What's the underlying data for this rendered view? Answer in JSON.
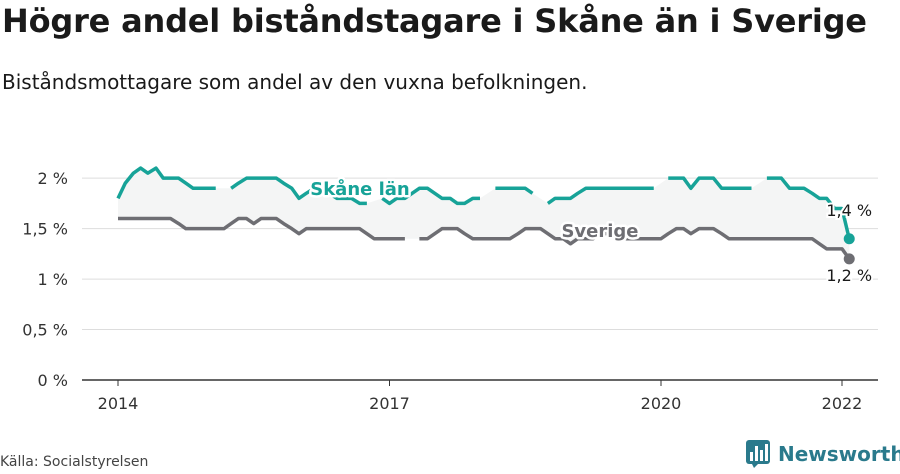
{
  "title": "Högre andel biståndstagare i Skåne än i Sverige",
  "subtitle": "Biståndsmottagare som andel av den vuxna befolkningen.",
  "source": "Källa: Socialstyrelsen",
  "brand": {
    "name": "Newsworthy",
    "icon": "bar-chart-logo-icon",
    "color": "#2a7a8c"
  },
  "chart_data": {
    "type": "line",
    "title": "Högre andel biståndstagare i Skåne än i Sverige",
    "subtitle": "Biståndsmottagare som andel av den vuxna befolkningen.",
    "xlabel": "",
    "ylabel": "",
    "xlim": [
      2014,
      2022.3
    ],
    "ylim": [
      0,
      2.2
    ],
    "y_ticks": [
      0,
      0.5,
      1,
      1.5,
      2
    ],
    "y_tick_labels": [
      "0 %",
      "0,5 %",
      "1 %",
      "1,5 %",
      "2 %"
    ],
    "x_ticks": [
      2014,
      2017,
      2020,
      2022
    ],
    "x_tick_labels": [
      "2014",
      "2017",
      "2020",
      "2022"
    ],
    "grid": true,
    "legend": "inline labels",
    "series": [
      {
        "name": "Skåne län",
        "color": "#17a398",
        "end_label": "1,4 %",
        "points": [
          [
            2014.0,
            1.8
          ],
          [
            2014.08,
            1.95
          ],
          [
            2014.17,
            2.05
          ],
          [
            2014.25,
            2.1
          ],
          [
            2014.33,
            2.05
          ],
          [
            2014.42,
            2.1
          ],
          [
            2014.5,
            2.0
          ],
          [
            2014.58,
            2.0
          ],
          [
            2014.67,
            2.0
          ],
          [
            2014.75,
            1.95
          ],
          [
            2014.83,
            1.9
          ],
          [
            2014.92,
            1.9
          ],
          [
            2015.0,
            1.9
          ],
          [
            2015.08,
            1.9
          ],
          [
            2015.17,
            null
          ],
          [
            2015.25,
            1.9
          ],
          [
            2015.33,
            1.95
          ],
          [
            2015.42,
            2.0
          ],
          [
            2015.5,
            2.0
          ],
          [
            2015.58,
            2.0
          ],
          [
            2015.67,
            2.0
          ],
          [
            2015.75,
            2.0
          ],
          [
            2015.83,
            1.95
          ],
          [
            2015.92,
            1.9
          ],
          [
            2016.0,
            1.8
          ],
          [
            2016.08,
            1.85
          ],
          [
            2016.17,
            1.9
          ],
          [
            2016.25,
            1.9
          ],
          [
            2016.33,
            1.85
          ],
          [
            2016.42,
            1.8
          ],
          [
            2016.5,
            1.8
          ],
          [
            2016.58,
            1.8
          ],
          [
            2016.67,
            1.75
          ],
          [
            2016.75,
            1.75
          ],
          [
            2016.83,
            null
          ],
          [
            2016.92,
            1.8
          ],
          [
            2017.0,
            1.75
          ],
          [
            2017.08,
            1.8
          ],
          [
            2017.17,
            1.8
          ],
          [
            2017.25,
            1.85
          ],
          [
            2017.33,
            1.9
          ],
          [
            2017.42,
            1.9
          ],
          [
            2017.5,
            1.85
          ],
          [
            2017.58,
            1.8
          ],
          [
            2017.67,
            1.8
          ],
          [
            2017.75,
            1.75
          ],
          [
            2017.83,
            1.75
          ],
          [
            2017.92,
            1.8
          ],
          [
            2018.0,
            1.8
          ],
          [
            2018.08,
            null
          ],
          [
            2018.17,
            1.9
          ],
          [
            2018.25,
            1.9
          ],
          [
            2018.33,
            1.9
          ],
          [
            2018.42,
            1.9
          ],
          [
            2018.5,
            1.9
          ],
          [
            2018.58,
            1.85
          ],
          [
            2018.67,
            null
          ],
          [
            2018.75,
            1.75
          ],
          [
            2018.83,
            1.8
          ],
          [
            2018.92,
            1.8
          ],
          [
            2019.0,
            1.8
          ],
          [
            2019.08,
            1.85
          ],
          [
            2019.17,
            1.9
          ],
          [
            2019.25,
            1.9
          ],
          [
            2019.33,
            1.9
          ],
          [
            2019.42,
            1.9
          ],
          [
            2019.5,
            1.9
          ],
          [
            2019.58,
            1.9
          ],
          [
            2019.67,
            1.9
          ],
          [
            2019.75,
            1.9
          ],
          [
            2019.83,
            1.9
          ],
          [
            2019.92,
            1.9
          ],
          [
            2020.0,
            null
          ],
          [
            2020.08,
            2.0
          ],
          [
            2020.17,
            2.0
          ],
          [
            2020.25,
            2.0
          ],
          [
            2020.33,
            1.9
          ],
          [
            2020.42,
            2.0
          ],
          [
            2020.5,
            2.0
          ],
          [
            2020.58,
            2.0
          ],
          [
            2020.67,
            1.9
          ],
          [
            2020.75,
            1.9
          ],
          [
            2020.83,
            1.9
          ],
          [
            2020.92,
            1.9
          ],
          [
            2021.0,
            1.9
          ],
          [
            2021.08,
            null
          ],
          [
            2021.17,
            2.0
          ],
          [
            2021.25,
            2.0
          ],
          [
            2021.33,
            2.0
          ],
          [
            2021.42,
            1.9
          ],
          [
            2021.5,
            1.9
          ],
          [
            2021.58,
            1.9
          ],
          [
            2021.67,
            1.85
          ],
          [
            2021.75,
            1.8
          ],
          [
            2021.83,
            1.8
          ],
          [
            2021.92,
            1.7
          ],
          [
            2022.0,
            1.7
          ],
          [
            2022.08,
            1.4
          ]
        ]
      },
      {
        "name": "Sverige",
        "color": "#6e6e73",
        "end_label": "1,2 %",
        "points": [
          [
            2014.0,
            1.6
          ],
          [
            2014.08,
            1.6
          ],
          [
            2014.17,
            1.6
          ],
          [
            2014.25,
            1.6
          ],
          [
            2014.33,
            1.6
          ],
          [
            2014.42,
            1.6
          ],
          [
            2014.5,
            1.6
          ],
          [
            2014.58,
            1.6
          ],
          [
            2014.67,
            1.55
          ],
          [
            2014.75,
            1.5
          ],
          [
            2014.83,
            1.5
          ],
          [
            2014.92,
            1.5
          ],
          [
            2015.0,
            1.5
          ],
          [
            2015.08,
            1.5
          ],
          [
            2015.17,
            1.5
          ],
          [
            2015.25,
            1.55
          ],
          [
            2015.33,
            1.6
          ],
          [
            2015.42,
            1.6
          ],
          [
            2015.5,
            1.55
          ],
          [
            2015.58,
            1.6
          ],
          [
            2015.67,
            1.6
          ],
          [
            2015.75,
            1.6
          ],
          [
            2015.83,
            1.55
          ],
          [
            2015.92,
            1.5
          ],
          [
            2016.0,
            1.45
          ],
          [
            2016.08,
            1.5
          ],
          [
            2016.17,
            1.5
          ],
          [
            2016.25,
            1.5
          ],
          [
            2016.33,
            1.5
          ],
          [
            2016.42,
            1.5
          ],
          [
            2016.5,
            1.5
          ],
          [
            2016.58,
            1.5
          ],
          [
            2016.67,
            1.5
          ],
          [
            2016.75,
            1.45
          ],
          [
            2016.83,
            1.4
          ],
          [
            2016.92,
            1.4
          ],
          [
            2017.0,
            1.4
          ],
          [
            2017.08,
            1.4
          ],
          [
            2017.17,
            1.4
          ],
          [
            2017.25,
            null
          ],
          [
            2017.33,
            1.4
          ],
          [
            2017.42,
            1.4
          ],
          [
            2017.5,
            1.45
          ],
          [
            2017.58,
            1.5
          ],
          [
            2017.67,
            1.5
          ],
          [
            2017.75,
            1.5
          ],
          [
            2017.83,
            1.45
          ],
          [
            2017.92,
            1.4
          ],
          [
            2018.0,
            1.4
          ],
          [
            2018.08,
            1.4
          ],
          [
            2018.17,
            1.4
          ],
          [
            2018.25,
            1.4
          ],
          [
            2018.33,
            1.4
          ],
          [
            2018.42,
            1.45
          ],
          [
            2018.5,
            1.5
          ],
          [
            2018.58,
            1.5
          ],
          [
            2018.67,
            1.5
          ],
          [
            2018.75,
            1.45
          ],
          [
            2018.83,
            1.4
          ],
          [
            2018.92,
            1.4
          ],
          [
            2019.0,
            1.35
          ],
          [
            2019.08,
            1.4
          ],
          [
            2019.17,
            1.4
          ],
          [
            2019.25,
            1.4
          ],
          [
            2019.33,
            1.45
          ],
          [
            2019.42,
            1.45
          ],
          [
            2019.5,
            1.45
          ],
          [
            2019.58,
            1.4
          ],
          [
            2019.67,
            1.4
          ],
          [
            2019.75,
            1.4
          ],
          [
            2019.83,
            1.4
          ],
          [
            2019.92,
            1.4
          ],
          [
            2020.0,
            1.4
          ],
          [
            2020.08,
            1.45
          ],
          [
            2020.17,
            1.5
          ],
          [
            2020.25,
            1.5
          ],
          [
            2020.33,
            1.45
          ],
          [
            2020.42,
            1.5
          ],
          [
            2020.5,
            1.5
          ],
          [
            2020.58,
            1.5
          ],
          [
            2020.67,
            1.45
          ],
          [
            2020.75,
            1.4
          ],
          [
            2020.83,
            1.4
          ],
          [
            2020.92,
            1.4
          ],
          [
            2021.0,
            1.4
          ],
          [
            2021.08,
            1.4
          ],
          [
            2021.17,
            1.4
          ],
          [
            2021.25,
            1.4
          ],
          [
            2021.33,
            1.4
          ],
          [
            2021.42,
            1.4
          ],
          [
            2021.5,
            1.4
          ],
          [
            2021.58,
            1.4
          ],
          [
            2021.67,
            1.4
          ],
          [
            2021.75,
            1.35
          ],
          [
            2021.83,
            1.3
          ],
          [
            2021.92,
            1.3
          ],
          [
            2022.0,
            1.3
          ],
          [
            2022.08,
            1.2
          ]
        ]
      }
    ]
  }
}
